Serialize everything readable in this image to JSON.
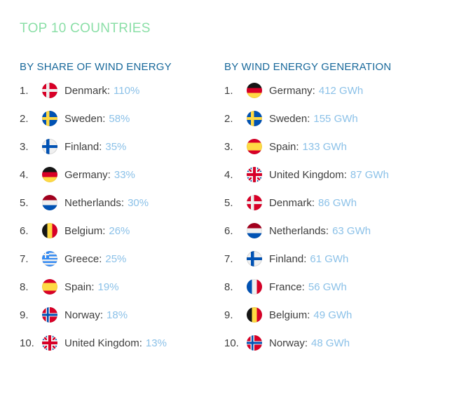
{
  "title": "TOP 10 COUNTRIES",
  "colors": {
    "title_green": "#8BDFA7",
    "header_blue": "#19699B",
    "name_dark": "#3E3E3E",
    "value_light_blue": "#8BC1E8"
  },
  "lists": [
    {
      "header": "BY SHARE OF WIND ENERGY",
      "items": [
        {
          "rank": "1.",
          "flag": "denmark",
          "label": "Denmark:",
          "value": "110%"
        },
        {
          "rank": "2.",
          "flag": "sweden",
          "label": "Sweden:",
          "value": "58%"
        },
        {
          "rank": "3.",
          "flag": "finland",
          "label": "Finland:",
          "value": "35%"
        },
        {
          "rank": "4.",
          "flag": "germany",
          "label": "Germany:",
          "value": "33%"
        },
        {
          "rank": "5.",
          "flag": "netherlands",
          "label": "Netherlands:",
          "value": "30%"
        },
        {
          "rank": "6.",
          "flag": "belgium",
          "label": "Belgium:",
          "value": "26%"
        },
        {
          "rank": "7.",
          "flag": "greece",
          "label": "Greece:",
          "value": "25%"
        },
        {
          "rank": "8.",
          "flag": "spain",
          "label": "Spain:",
          "value": "19%"
        },
        {
          "rank": "9.",
          "flag": "norway",
          "label": "Norway:",
          "value": "18%"
        },
        {
          "rank": "10.",
          "flag": "united-kingdom",
          "label": "United Kingdom:",
          "value": "13%"
        }
      ]
    },
    {
      "header": "BY WIND ENERGY GENERATION",
      "items": [
        {
          "rank": "1.",
          "flag": "germany",
          "label": "Germany:",
          "value": "412 GWh"
        },
        {
          "rank": "2.",
          "flag": "sweden",
          "label": "Sweden:",
          "value": "155 GWh"
        },
        {
          "rank": "3.",
          "flag": "spain",
          "label": "Spain:",
          "value": "133 GWh"
        },
        {
          "rank": "4.",
          "flag": "united-kingdom",
          "label": "United Kingdom:",
          "value": "87 GWh"
        },
        {
          "rank": "5.",
          "flag": "denmark",
          "label": "Denmark:",
          "value": "86 GWh"
        },
        {
          "rank": "6.",
          "flag": "netherlands",
          "label": "Netherlands:",
          "value": "63 GWh"
        },
        {
          "rank": "7.",
          "flag": "finland",
          "label": "Finland:",
          "value": "61 GWh"
        },
        {
          "rank": "8.",
          "flag": "france",
          "label": "France:",
          "value": "56 GWh"
        },
        {
          "rank": "9.",
          "flag": "belgium",
          "label": "Belgium:",
          "value": "49 GWh"
        },
        {
          "rank": "10.",
          "flag": "norway",
          "label": "Norway:",
          "value": "48 GWh"
        }
      ]
    }
  ],
  "chart_data": [
    {
      "type": "table",
      "title": "BY SHARE OF WIND ENERGY",
      "categories": [
        "Denmark",
        "Sweden",
        "Finland",
        "Germany",
        "Netherlands",
        "Belgium",
        "Greece",
        "Spain",
        "Norway",
        "United Kingdom"
      ],
      "values": [
        110,
        58,
        35,
        33,
        30,
        26,
        25,
        19,
        18,
        13
      ],
      "unit": "%"
    },
    {
      "type": "table",
      "title": "BY WIND ENERGY GENERATION",
      "categories": [
        "Germany",
        "Sweden",
        "Spain",
        "United Kingdom",
        "Denmark",
        "Netherlands",
        "Finland",
        "France",
        "Belgium",
        "Norway"
      ],
      "values": [
        412,
        155,
        133,
        87,
        86,
        63,
        61,
        56,
        49,
        48
      ],
      "unit": "GWh"
    }
  ]
}
